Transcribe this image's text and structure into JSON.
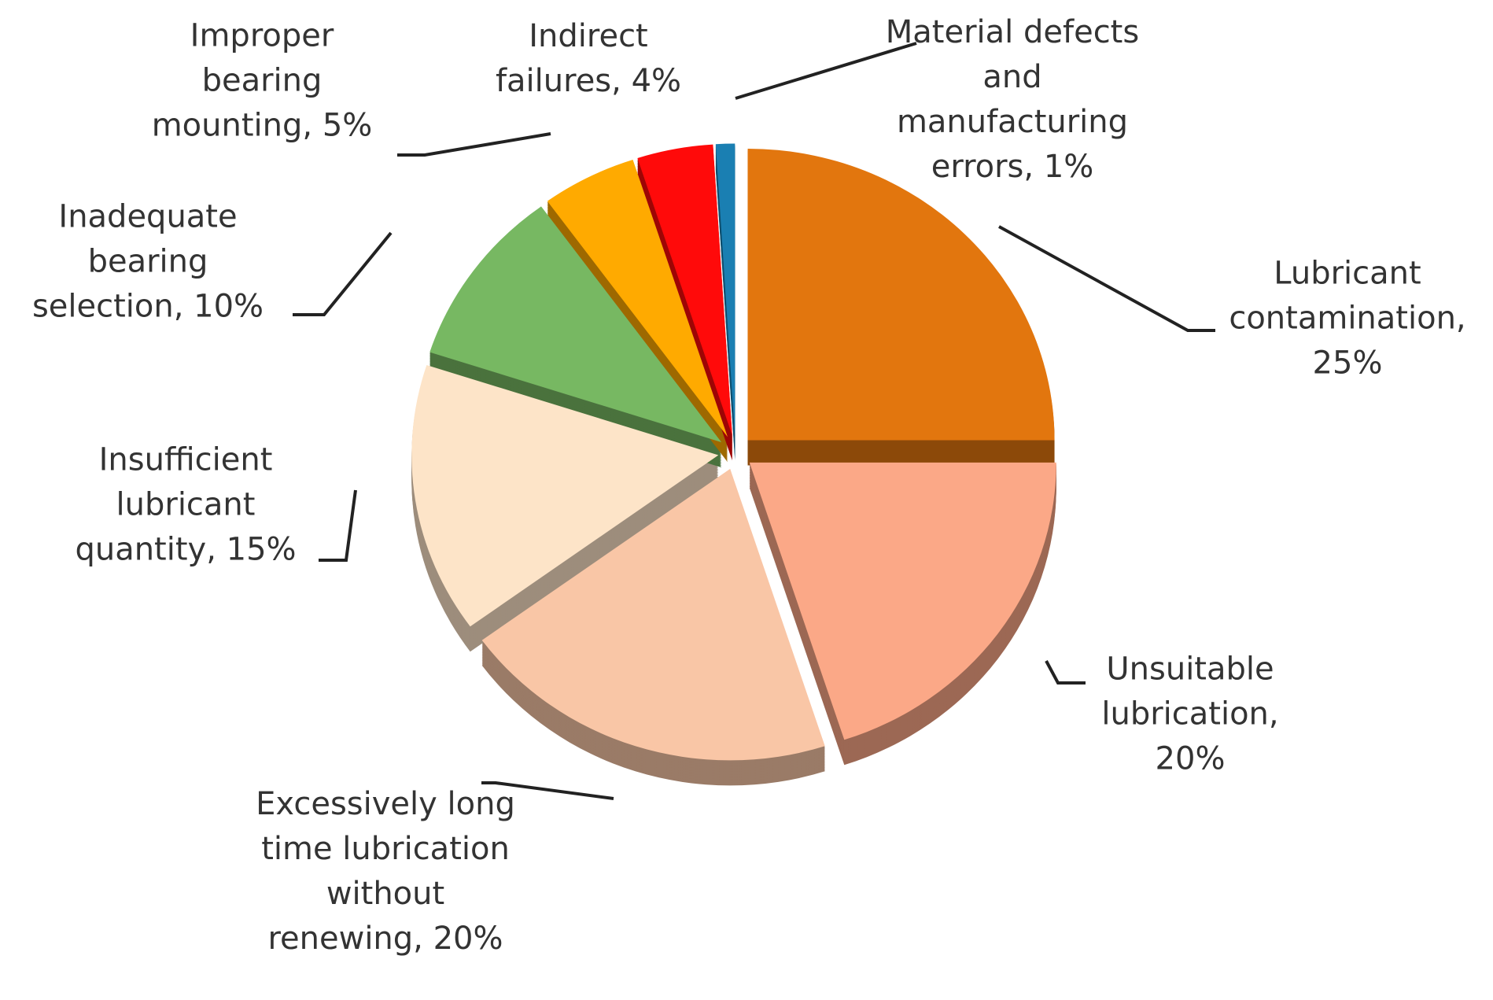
{
  "chart_data": {
    "type": "pie",
    "categories": [
      "Lubricant contamination, 25%",
      "Unsuitable lubrication, 20%",
      "Excessively long time lubrication without renewing, 20%",
      "Insufficient lubricant quantity, 15%",
      "Inadequate bearing selection, 10%",
      "Improper bearing mounting, 5%",
      "Indirect failures, 4%",
      "Material defects and manufacturing errors, 1%"
    ],
    "values": [
      25,
      20,
      20,
      15,
      10,
      5,
      4,
      1
    ],
    "colors": [
      "#e2760e",
      "#fba887",
      "#f9c6a6",
      "#fde4c8",
      "#77b862",
      "#ffaa00",
      "#ff0a0a",
      "#1a7fb2"
    ]
  }
}
